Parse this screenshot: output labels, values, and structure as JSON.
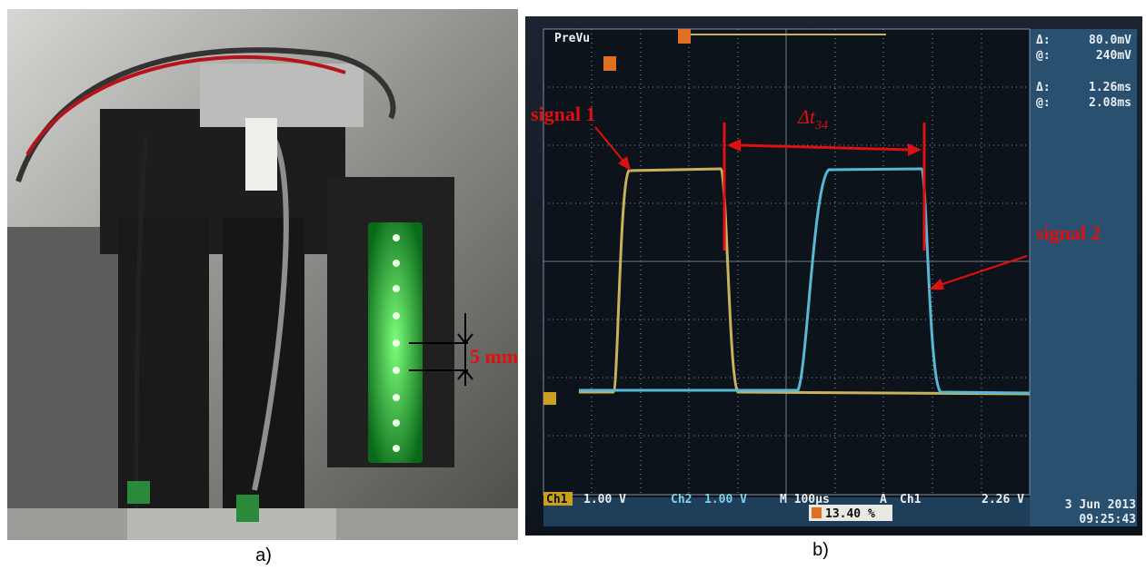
{
  "panel_a": {
    "label": "a)",
    "scale_label": "5 mm"
  },
  "panel_b": {
    "label": "b)",
    "scope": {
      "mode": "PreVu",
      "cursor_1": {
        "delta_symbol": "Δ:",
        "delta": "80.0mV",
        "at_symbol": "@:",
        "at": "240mV"
      },
      "cursor_2": {
        "delta_symbol": "Δ:",
        "delta": "1.26ms",
        "at_symbol": "@:",
        "at": "2.08ms"
      },
      "channel_1": {
        "name": "Ch1",
        "scale": "1.00 V"
      },
      "channel_2": {
        "name": "Ch2",
        "scale": "1.00 V"
      },
      "timebase": "M 100μs",
      "trigger": {
        "mode": "A",
        "source": "Ch1",
        "level": "2.26 V"
      },
      "trigger_position": "13.40 %",
      "date": "3 Jun 2013",
      "time": "09:25:43"
    },
    "annotations": {
      "signal_1": "signal 1",
      "signal_2": "signal 2",
      "delta_t_symbol": "Δt",
      "delta_t_subscript": "34"
    }
  }
}
